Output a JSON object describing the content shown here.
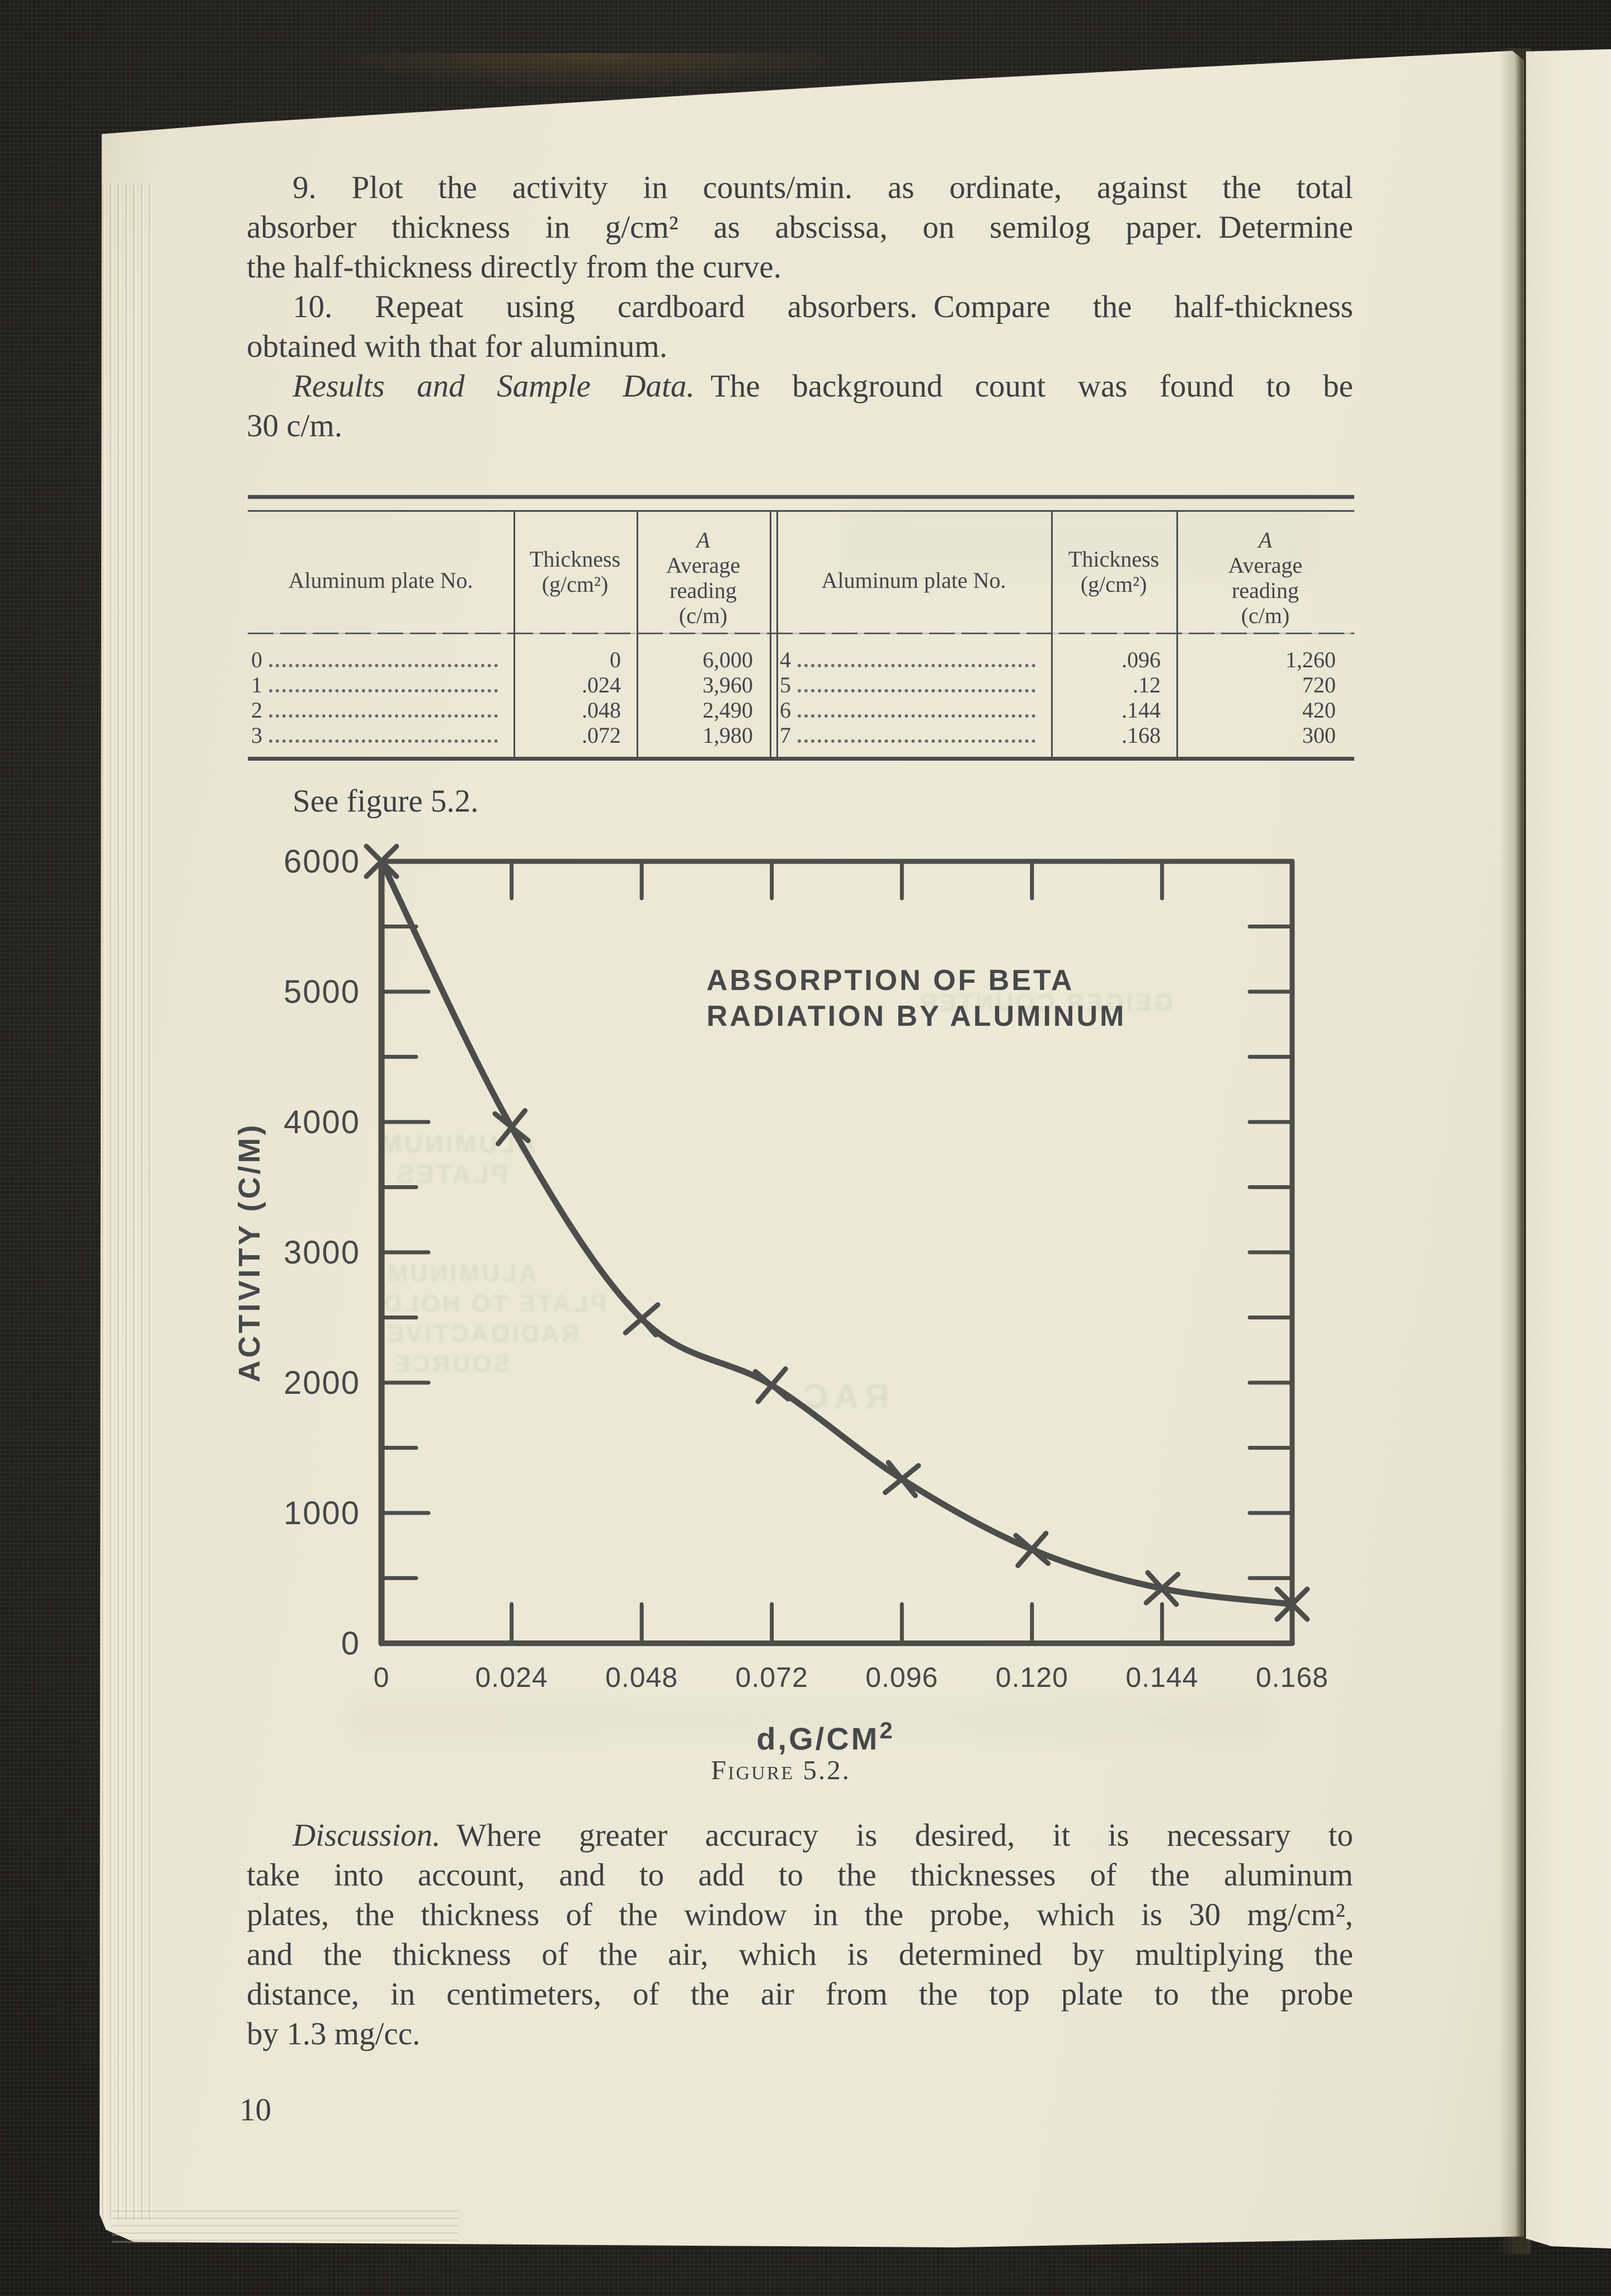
{
  "content": {
    "p9_lines": [
      "9. Plot the activity in counts/min. as ordinate, against the total",
      "absorber thickness in g/cm² as abscissa, on semilog paper. Determine",
      "the half-thickness directly from the curve."
    ],
    "p10_lines": [
      "10. Repeat using cardboard absorbers. Compare the half-thickness",
      "obtained with that for aluminum."
    ],
    "results_italic": "Results and Sample Data.",
    "results_line1_rest": " The background count was found to be",
    "results_line2": "30 c/m.",
    "see_figure": "See figure 5.2.",
    "discussion_italic": "Discussion.",
    "discussion_line1_rest": " Where greater accuracy is desired, it is necessary to",
    "discussion_lines": [
      "take into account, and to add to the thicknesses of the aluminum",
      "plates, the thickness of the window in the probe, which is 30 mg/cm²,",
      "and the thickness of the air, which is determined by multiplying the",
      "distance, in centimeters, of the air from the top plate to the probe",
      "by 1.3 mg/cc."
    ],
    "page_number": "10"
  },
  "table": {
    "col_headers": {
      "plate": "Aluminum plate No.",
      "thickness1": "Thickness",
      "thickness2": "(g/cm²)",
      "a": "A",
      "avg1": "Average",
      "avg2": "reading",
      "avg3": "(c/m)"
    },
    "left_rows": [
      {
        "plate": "0",
        "thickness": "0",
        "reading": "6,000"
      },
      {
        "plate": "1",
        "thickness": ".024",
        "reading": "3,960"
      },
      {
        "plate": "2",
        "thickness": ".048",
        "reading": "2,490"
      },
      {
        "plate": "3",
        "thickness": ".072",
        "reading": "1,980"
      }
    ],
    "right_rows": [
      {
        "plate": "4",
        "thickness": ".096",
        "reading": "1,260"
      },
      {
        "plate": "5",
        "thickness": ".12",
        "reading": "720"
      },
      {
        "plate": "6",
        "thickness": ".144",
        "reading": "420"
      },
      {
        "plate": "7",
        "thickness": ".168",
        "reading": "300"
      }
    ]
  },
  "chart_data": {
    "type": "line",
    "title": "ABSORPTION OF BETA RADIATION BY ALUMINUM",
    "title_lines": [
      "ABSORPTION OF BETA",
      "RADIATION BY ALUMINUM"
    ],
    "xlabel": "d,G/CM²",
    "ylabel": "ACTIVITY (C/M)",
    "x": [
      0,
      0.024,
      0.048,
      0.072,
      0.096,
      0.12,
      0.144,
      0.168
    ],
    "y": [
      6000,
      3960,
      2490,
      1980,
      1260,
      720,
      420,
      300
    ],
    "x_tick_labels": [
      "0",
      "0.024",
      "0.048",
      "0.072",
      "0.096",
      "0.120",
      "0.144",
      "0.168"
    ],
    "xlim": [
      0,
      0.168
    ],
    "ylim": [
      0,
      6000
    ],
    "y_major_step": 1000,
    "y_minor_step": 500,
    "marker": "x",
    "grid": false,
    "legend": "none",
    "caption": "Figure 5.2."
  },
  "bleed_through": {
    "g1": "GEIGER COUNTER",
    "g2a": "ALUMINUM",
    "g2b": "PLATES",
    "g3a": "ALUMINUM",
    "g3b": "PLATE TO HOLD",
    "g3c": "RADIOACTIVE",
    "g3d": "SOURCE",
    "g4": "RAC"
  }
}
